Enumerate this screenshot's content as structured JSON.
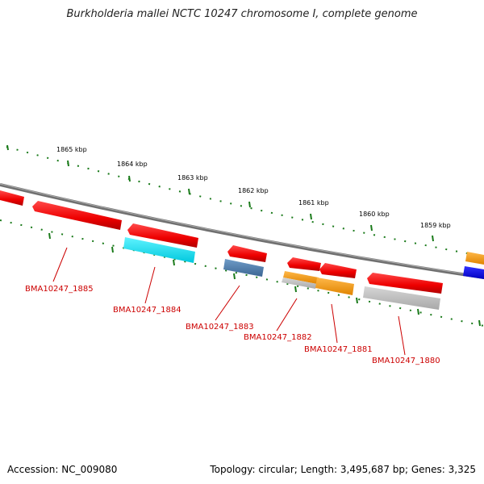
{
  "title": "Burkholderia mallei NCTC 10247 chromosome I, complete genome",
  "footer": {
    "accession": "Accession: NC_009080",
    "summary": "Topology: circular; Length: 3,495,687 bp; Genes: 3,325"
  },
  "scale": {
    "tick_labels": [
      "1865 kbp",
      "1864 kbp",
      "1863 kbp",
      "1862 kbp",
      "1861 kbp",
      "1860 kbp",
      "1859 kbp"
    ]
  },
  "genes": [
    {
      "label": "BMA10247_1885",
      "color": "#ff0000"
    },
    {
      "label": "BMA10247_1884",
      "color": "#ff0000"
    },
    {
      "label": "BMA10247_1883",
      "color": "#ff0000"
    },
    {
      "label": "BMA10247_1882",
      "color": "#ff0000"
    },
    {
      "label": "BMA10247_1881",
      "color": "#ff0000"
    },
    {
      "label": "BMA10247_1880",
      "color": "#ff0000"
    }
  ],
  "features": [
    {
      "color": "#00e5ee"
    },
    {
      "color": "#4f7fb0"
    },
    {
      "color": "#ff9900"
    },
    {
      "color": "#bbbbbb"
    },
    {
      "color": "#0000ff"
    }
  ],
  "colors": {
    "backbone": "#888888",
    "ticks": "#1a7a1a",
    "labels": "#cc0000"
  }
}
